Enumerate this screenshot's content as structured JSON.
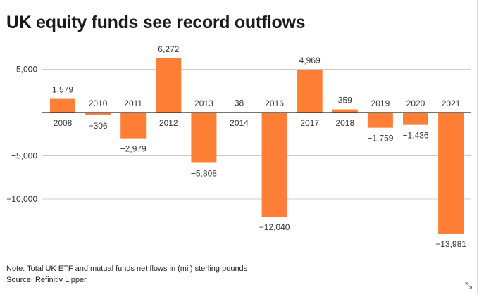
{
  "chart_data": {
    "type": "bar",
    "title": "UK equity funds see record outflows",
    "categories": [
      "2008",
      "2010",
      "2011",
      "2012",
      "2013",
      "2014",
      "2016",
      "2017",
      "2018",
      "2019",
      "2020",
      "2021"
    ],
    "values": [
      1579,
      -306,
      -2979,
      6272,
      -5808,
      38,
      -12040,
      4969,
      359,
      -1759,
      -1436,
      -13981
    ],
    "value_labels": [
      "1,579",
      "−306",
      "−2,979",
      "6,272",
      "−5,808",
      "38",
      "−12,040",
      "4,969",
      "359",
      "−1,759",
      "−1,436",
      "−13,981"
    ],
    "yticks": [
      5000,
      -5000,
      -10000
    ],
    "ytick_labels": [
      "5,000",
      "−5,000",
      "−10,000"
    ],
    "ylim": [
      -14500,
      7000
    ],
    "xlabel": "",
    "ylabel": "",
    "grid": true,
    "bar_color": "#ff7f37"
  },
  "note": "Note: Total UK ETF and mutual funds net flows in (mil) sterling pounds",
  "source": "Source: Refinitiv Lipper",
  "expand_icon": "expand-icon"
}
